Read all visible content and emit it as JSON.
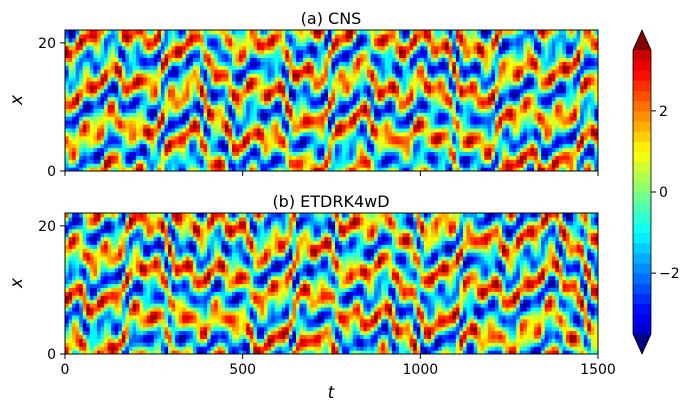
{
  "chart_data": [
    {
      "type": "heatmap",
      "title": "(a) CNS",
      "xlabel": "",
      "ylabel": "x",
      "xlim": [
        0,
        1500
      ],
      "ylim": [
        0,
        22
      ],
      "x_ticks": [
        "0",
        "500",
        "1000",
        "1500"
      ],
      "x_ticks_visible_labels": false,
      "y_ticks": [
        "0",
        "20"
      ],
      "colormap": "jet",
      "zlim": [
        -3.5,
        3.5
      ],
      "pattern": "spatiotemporal chaotic field (Kuramoto-Sivashinsky type), oscillating in x with drifting stripes over t"
    },
    {
      "type": "heatmap",
      "title": "(b) ETDRK4wD",
      "xlabel": "t",
      "ylabel": "x",
      "xlim": [
        0,
        1500
      ],
      "ylim": [
        0,
        22
      ],
      "x_ticks": [
        "0",
        "500",
        "1000",
        "1500"
      ],
      "y_ticks": [
        "0",
        "20"
      ],
      "colormap": "jet",
      "zlim": [
        -3.5,
        3.5
      ],
      "pattern": "spatiotemporal chaotic field (Kuramoto-Sivashinsky type), oscillating in x with drifting stripes over t"
    }
  ],
  "colorbar": {
    "ticks": [
      "−2",
      "0",
      "2"
    ],
    "tick_values": [
      -2,
      0,
      2
    ],
    "range": [
      -3.5,
      3.5
    ],
    "extend": "both"
  }
}
